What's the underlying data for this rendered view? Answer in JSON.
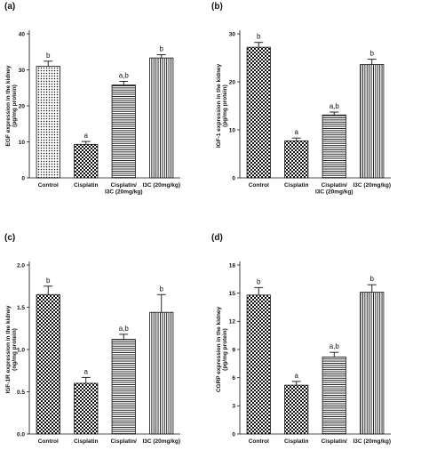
{
  "chart_data": [
    {
      "type": "bar",
      "panel": "(a)",
      "ylabel": [
        "EGF expression in the kidney",
        "(pg/mg protein)"
      ],
      "ylim": [
        0,
        40
      ],
      "yticks": [
        0,
        10,
        20,
        30,
        40
      ],
      "categories": [
        [
          "Control"
        ],
        [
          "Cisplatin"
        ],
        [
          "Cisplatin/",
          "I3C (20mg/kg)"
        ],
        [
          "I3C (20mg/kg)"
        ]
      ],
      "values": [
        31,
        9.3,
        25.8,
        33.3
      ],
      "errors": [
        1.4,
        0.8,
        1.0,
        0.9
      ],
      "significance": [
        "b",
        "a",
        "a,b",
        "b"
      ],
      "patterns": [
        "dots",
        "checker",
        "hlines",
        "vlines"
      ]
    },
    {
      "type": "bar",
      "panel": "(b)",
      "ylabel": [
        "IGF-1 expression in the kidney",
        "(pg/mg protein)"
      ],
      "ylim": [
        0,
        30
      ],
      "yticks": [
        0,
        10,
        20,
        30
      ],
      "categories": [
        [
          "Control"
        ],
        [
          "Cisplatin"
        ],
        [
          "Cisplatin/",
          "I3C (20mg/kg)"
        ],
        [
          "I3C (20mg/kg)"
        ]
      ],
      "values": [
        27.2,
        7.7,
        13.1,
        23.6
      ],
      "errors": [
        1.0,
        0.6,
        0.6,
        1.1
      ],
      "significance": [
        "b",
        "a",
        "a,b",
        "b"
      ],
      "patterns": [
        "checker",
        "checker",
        "hlines",
        "vlines"
      ]
    },
    {
      "type": "bar",
      "panel": "(c)",
      "ylabel": [
        "IGF-1R expression in the kidney",
        "(ng/mg protein)"
      ],
      "ylim": [
        0,
        2.0
      ],
      "yticks": [
        0.0,
        0.5,
        1.0,
        1.5,
        2.0
      ],
      "ytick_labels": [
        "0.0",
        "0.5",
        "1.0",
        "1.5",
        "2.0"
      ],
      "categories": [
        [
          "Control"
        ],
        [
          "Cisplatin"
        ],
        [
          "Cisplatin/",
          "I3C (20mg/kg)"
        ],
        [
          "I3C (20mg/kg)"
        ]
      ],
      "values": [
        1.65,
        0.6,
        1.12,
        1.44
      ],
      "errors": [
        0.1,
        0.07,
        0.06,
        0.21
      ],
      "significance": [
        "b",
        "a",
        "a,b",
        "b"
      ],
      "patterns": [
        "checker",
        "checker",
        "hlines",
        "vlines"
      ]
    },
    {
      "type": "bar",
      "panel": "(d)",
      "ylabel": [
        "CGRP expression in the kidney",
        "(pg/mg protein)"
      ],
      "ylim": [
        0,
        18
      ],
      "yticks": [
        0,
        3,
        6,
        9,
        12,
        15,
        18
      ],
      "categories": [
        [
          "Control"
        ],
        [
          "Cisplatin"
        ],
        [
          "Cisplatin/",
          "I3C (20mg/kg)"
        ],
        [
          "I3C (20mg/kg)"
        ]
      ],
      "values": [
        14.8,
        5.2,
        8.2,
        15.1
      ],
      "errors": [
        0.8,
        0.4,
        0.5,
        0.8
      ],
      "significance": [
        "b",
        "a",
        "a,b",
        "b"
      ],
      "patterns": [
        "checker",
        "checker",
        "hlines",
        "vlines"
      ]
    }
  ]
}
